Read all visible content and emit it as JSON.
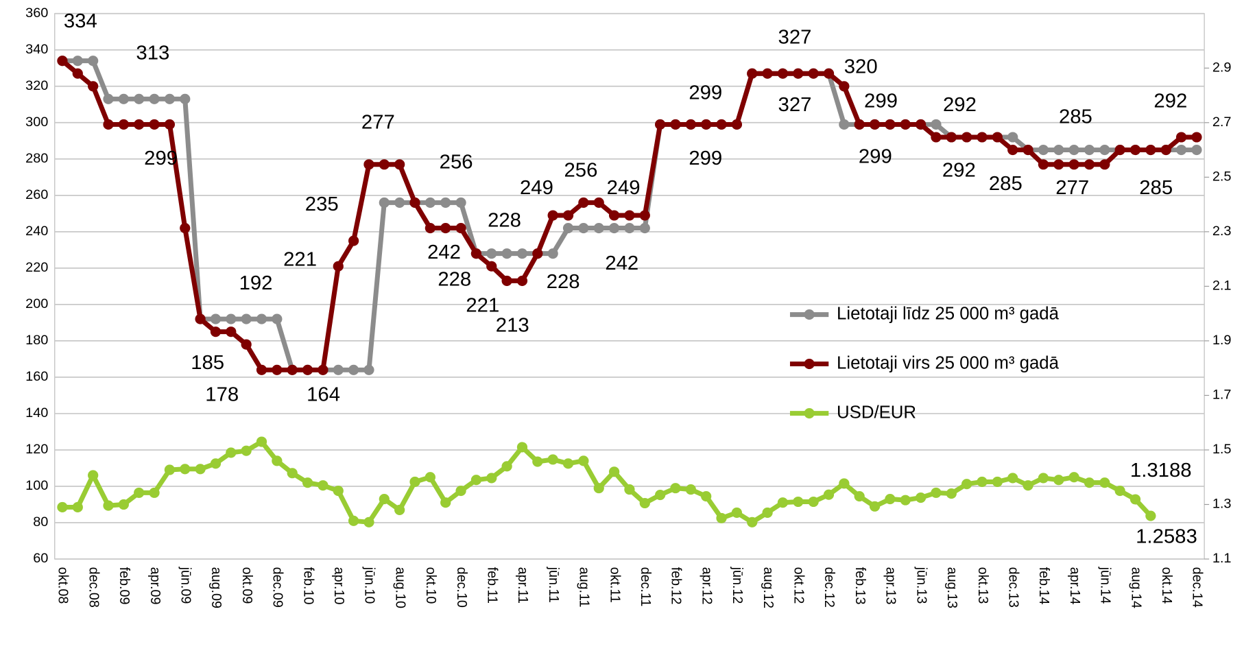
{
  "chart_data": {
    "type": "line",
    "categories": [
      "okt.08",
      null,
      "dec.08",
      null,
      "feb.09",
      null,
      "apr.09",
      null,
      "jūn.09",
      null,
      "aug.09",
      null,
      "okt.09",
      null,
      "dec.09",
      null,
      "feb.10",
      null,
      "apr.10",
      null,
      "jūn.10",
      null,
      "aug.10",
      null,
      "okt.10",
      null,
      "dec.10",
      null,
      "feb.11",
      null,
      "apr.11",
      null,
      "jūn.11",
      null,
      "aug.11",
      null,
      "okt.11",
      null,
      "dec.11",
      null,
      "feb.12",
      null,
      "apr.12",
      null,
      "jūn.12",
      null,
      "aug.12",
      null,
      "okt.12",
      null,
      "dec.12",
      null,
      "feb.13",
      null,
      "apr.13",
      null,
      "jūn.13",
      null,
      "aug.13",
      null,
      "okt.13",
      null,
      "dec.13",
      null,
      "feb.14",
      null,
      "apr.14",
      null,
      "jūn.14",
      null,
      "aug.14",
      null,
      "okt.14",
      null,
      "dec.14"
    ],
    "series": [
      {
        "name": "Lietotaji līdz 25 000 m³ gadā",
        "color": "#8c8c8c",
        "values": [
          334,
          334,
          334,
          313,
          313,
          313,
          313,
          313,
          313,
          192,
          192,
          192,
          192,
          192,
          192,
          164,
          164,
          164,
          164,
          164,
          164,
          256,
          256,
          256,
          256,
          256,
          256,
          228,
          228,
          228,
          228,
          228,
          228,
          242,
          242,
          242,
          242,
          242,
          242,
          299,
          299,
          299,
          299,
          299,
          299,
          327,
          327,
          327,
          327,
          327,
          327,
          299,
          299,
          299,
          299,
          299,
          299,
          299,
          292,
          292,
          292,
          292,
          292,
          285,
          285,
          285,
          285,
          285,
          285,
          285,
          285,
          285,
          285,
          285,
          285
        ]
      },
      {
        "name": "Lietotaji virs 25 000 m³ gadā",
        "color": "#7f0000",
        "values": [
          334,
          327,
          320,
          299,
          299,
          299,
          299,
          299,
          242,
          192,
          185,
          185,
          178,
          164,
          164,
          164,
          164,
          164,
          221,
          235,
          277,
          277,
          277,
          256,
          242,
          242,
          242,
          228,
          221,
          213,
          213,
          228,
          249,
          249,
          256,
          256,
          249,
          249,
          249,
          299,
          299,
          299,
          299,
          299,
          299,
          327,
          327,
          327,
          327,
          327,
          327,
          320,
          299,
          299,
          299,
          299,
          299,
          292,
          292,
          292,
          292,
          292,
          285,
          285,
          277,
          277,
          277,
          277,
          277,
          285,
          285,
          285,
          285,
          292,
          292
        ]
      },
      {
        "name": "USD/EUR",
        "color": "#99cc33",
        "axis": "y2",
        "values": [
          1.29,
          1.29,
          1.407,
          1.296,
          1.3,
          1.343,
          1.343,
          1.427,
          1.43,
          1.43,
          1.45,
          1.49,
          1.497,
          1.53,
          1.46,
          1.415,
          1.38,
          1.37,
          1.35,
          1.24,
          1.235,
          1.32,
          1.28,
          1.383,
          1.4,
          1.307,
          1.35,
          1.39,
          1.397,
          1.44,
          1.51,
          1.457,
          1.465,
          1.45,
          1.46,
          1.36,
          1.42,
          1.355,
          1.305,
          1.335,
          1.36,
          1.355,
          1.33,
          1.25,
          1.27,
          1.235,
          1.27,
          1.307,
          1.31,
          1.31,
          1.336,
          1.377,
          1.33,
          1.293,
          1.32,
          1.316,
          1.325,
          1.343,
          1.34,
          1.375,
          1.383,
          1.383,
          1.397,
          1.37,
          1.397,
          1.39,
          1.4,
          1.38,
          1.38,
          1.35,
          1.3188,
          1.2583,
          null,
          null,
          null
        ]
      }
    ],
    "ylim": [
      60,
      360
    ],
    "yticks": [
      60,
      80,
      100,
      120,
      140,
      160,
      180,
      200,
      220,
      240,
      260,
      280,
      300,
      320,
      340,
      360
    ],
    "y2lim": [
      1.1,
      3.1
    ],
    "y2ticks": [
      1.1,
      1.3,
      1.5,
      1.7,
      1.9,
      2.1,
      2.3,
      2.5,
      2.7,
      2.9
    ],
    "grid": true
  }
}
